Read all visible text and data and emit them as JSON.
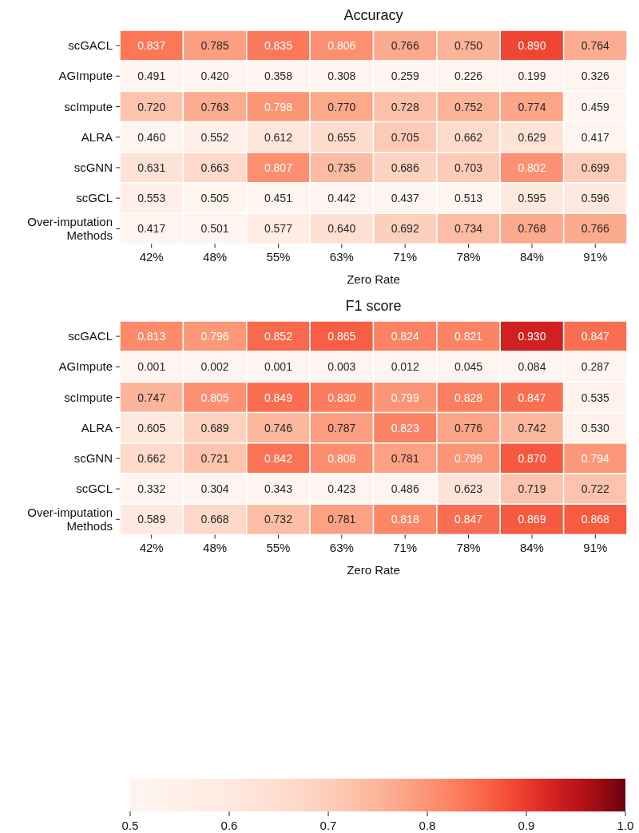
{
  "chart_data": [
    {
      "type": "heatmap",
      "title": "Accuracy",
      "xlabel": "Zero Rate",
      "categories": [
        "42%",
        "48%",
        "55%",
        "63%",
        "71%",
        "78%",
        "84%",
        "91%"
      ],
      "y_categories": [
        "scGACL",
        "AGImpute",
        "scImpute",
        "ALRA",
        "scGNN",
        "scGCL",
        "Over-imputation\nMethods"
      ],
      "data_labels": true,
      "cells": [
        [
          0.837,
          0.785,
          0.835,
          0.806,
          0.766,
          0.75,
          0.89,
          0.764
        ],
        [
          0.491,
          0.42,
          0.358,
          0.308,
          0.259,
          0.226,
          0.199,
          0.326
        ],
        [
          0.72,
          0.763,
          0.798,
          0.77,
          0.728,
          0.752,
          0.774,
          0.459
        ],
        [
          0.46,
          0.552,
          0.612,
          0.655,
          0.705,
          0.662,
          0.629,
          0.417
        ],
        [
          0.631,
          0.663,
          0.807,
          0.735,
          0.686,
          0.703,
          0.802,
          0.699
        ],
        [
          0.553,
          0.505,
          0.451,
          0.442,
          0.437,
          0.513,
          0.595,
          0.596
        ],
        [
          0.417,
          0.501,
          0.577,
          0.64,
          0.692,
          0.734,
          0.768,
          0.766
        ]
      ],
      "cell_labels": [
        [
          "0.837",
          "0.785",
          "0.835",
          "0.806",
          "0.766",
          "0.750",
          "0.890",
          "0.764"
        ],
        [
          "0.491",
          "0.420",
          "0.358",
          "0.308",
          "0.259",
          "0.226",
          "0.199",
          "0.326"
        ],
        [
          "0.720",
          "0.763",
          "0.798",
          "0.770",
          "0.728",
          "0.752",
          "0.774",
          "0.459"
        ],
        [
          "0.460",
          "0.552",
          "0.612",
          "0.655",
          "0.705",
          "0.662",
          "0.629",
          "0.417"
        ],
        [
          "0.631",
          "0.663",
          "0.807",
          "0.735",
          "0.686",
          "0.703",
          "0.802",
          "0.699"
        ],
        [
          "0.553",
          "0.505",
          "0.451",
          "0.442",
          "0.437",
          "0.513",
          "0.595",
          "0.596"
        ],
        [
          "0.417",
          "0.501",
          "0.577",
          "0.640",
          "0.692",
          "0.734",
          "0.768",
          "0.766"
        ]
      ]
    },
    {
      "type": "heatmap",
      "title": "F1 score",
      "xlabel": "Zero Rate",
      "categories": [
        "42%",
        "48%",
        "55%",
        "63%",
        "71%",
        "78%",
        "84%",
        "91%"
      ],
      "y_categories": [
        "scGACL",
        "AGImpute",
        "scImpute",
        "ALRA",
        "scGNN",
        "scGCL",
        "Over-imputation\nMethods"
      ],
      "clim": [
        0.5,
        1.0
      ],
      "cticks": [
        {
          "value": 0.5,
          "label": "0.5"
        },
        {
          "value": 0.6,
          "label": "0.6"
        },
        {
          "value": 0.7,
          "label": "0.7"
        },
        {
          "value": 0.8,
          "label": "0.8"
        },
        {
          "value": 0.9,
          "label": "0.9"
        },
        {
          "value": 1.0,
          "label": "1.0"
        }
      ],
      "data_labels": true,
      "cells": [
        [
          0.813,
          0.796,
          0.852,
          0.865,
          0.824,
          0.821,
          0.93,
          0.847
        ],
        [
          0.001,
          0.002,
          0.001,
          0.003,
          0.012,
          0.045,
          0.084,
          0.287
        ],
        [
          0.747,
          0.805,
          0.849,
          0.83,
          0.799,
          0.828,
          0.847,
          0.535
        ],
        [
          0.605,
          0.689,
          0.746,
          0.787,
          0.823,
          0.776,
          0.742,
          0.53
        ],
        [
          0.662,
          0.721,
          0.842,
          0.808,
          0.781,
          0.799,
          0.87,
          0.794
        ],
        [
          0.332,
          0.304,
          0.343,
          0.423,
          0.486,
          0.623,
          0.719,
          0.722
        ],
        [
          0.589,
          0.668,
          0.732,
          0.781,
          0.818,
          0.847,
          0.869,
          0.868
        ]
      ],
      "cell_labels": [
        [
          "0.813",
          "0.796",
          "0.852",
          "0.865",
          "0.824",
          "0.821",
          "0.930",
          "0.847"
        ],
        [
          "0.001",
          "0.002",
          "0.001",
          "0.003",
          "0.012",
          "0.045",
          "0.084",
          "0.287"
        ],
        [
          "0.747",
          "0.805",
          "0.849",
          "0.830",
          "0.799",
          "0.828",
          "0.847",
          "0.535"
        ],
        [
          "0.605",
          "0.689",
          "0.746",
          "0.787",
          "0.823",
          "0.776",
          "0.742",
          "0.530"
        ],
        [
          "0.662",
          "0.721",
          "0.842",
          "0.808",
          "0.781",
          "0.799",
          "0.870",
          "0.794"
        ],
        [
          "0.332",
          "0.304",
          "0.343",
          "0.423",
          "0.486",
          "0.623",
          "0.719",
          "0.722"
        ],
        [
          "0.589",
          "0.668",
          "0.732",
          "0.781",
          "0.818",
          "0.847",
          "0.869",
          "0.868"
        ]
      ]
    }
  ]
}
